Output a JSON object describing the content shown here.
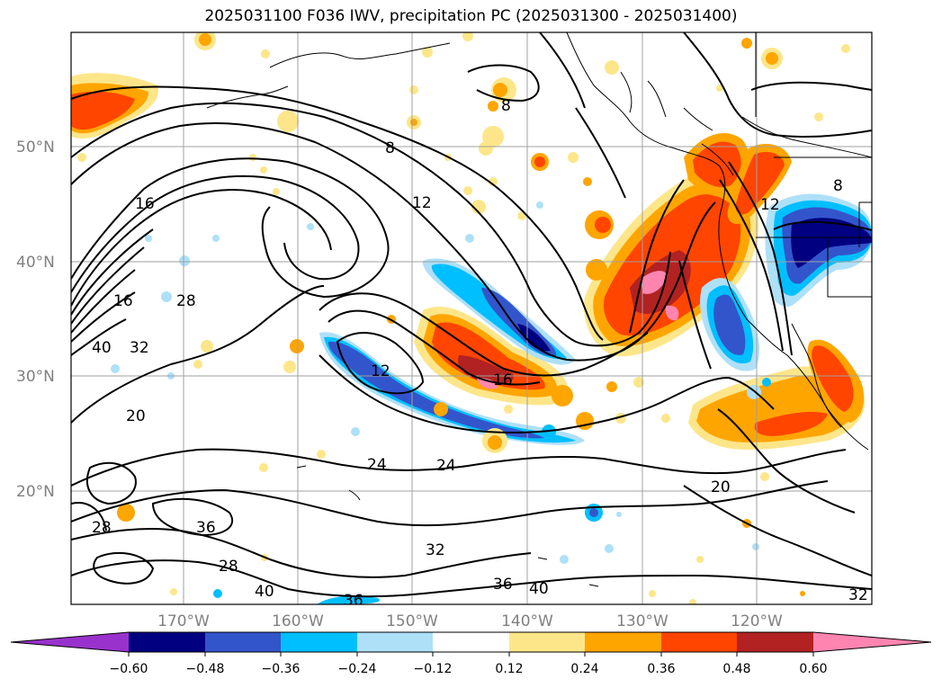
{
  "title": "2025031100 F036 IWV, precipitation PC (2025031300 - 2025031400)",
  "latitude_labels": [
    "50°N",
    "40°N",
    "30°N",
    "20°N"
  ],
  "longitude_labels": [
    "170°W",
    "160°W",
    "150°W",
    "140°W",
    "130°W",
    "120°W"
  ],
  "contour_labels": [
    "8",
    "8",
    "8",
    "12",
    "12",
    "12",
    "16",
    "16",
    "16",
    "20",
    "20",
    "24",
    "24",
    "28",
    "28",
    "28",
    "32",
    "32",
    "32",
    "36",
    "36",
    "36",
    "40",
    "40",
    "40"
  ],
  "colorbar": {
    "tick_labels": [
      "−0.60",
      "−0.48",
      "−0.36",
      "−0.24",
      "−0.12",
      "0.12",
      "0.24",
      "0.36",
      "0.48",
      "0.60"
    ],
    "colors": [
      "#9932cc",
      "#000080",
      "#3355cc",
      "#00bfff",
      "#aee0f8",
      "#ffffff",
      "#fde68a",
      "#ffa500",
      "#ff4500",
      "#b22222",
      "#ff85b0"
    ]
  },
  "colors": {
    "coast": "#000000",
    "grid": "#a0a0a0",
    "contour": "#000000"
  }
}
